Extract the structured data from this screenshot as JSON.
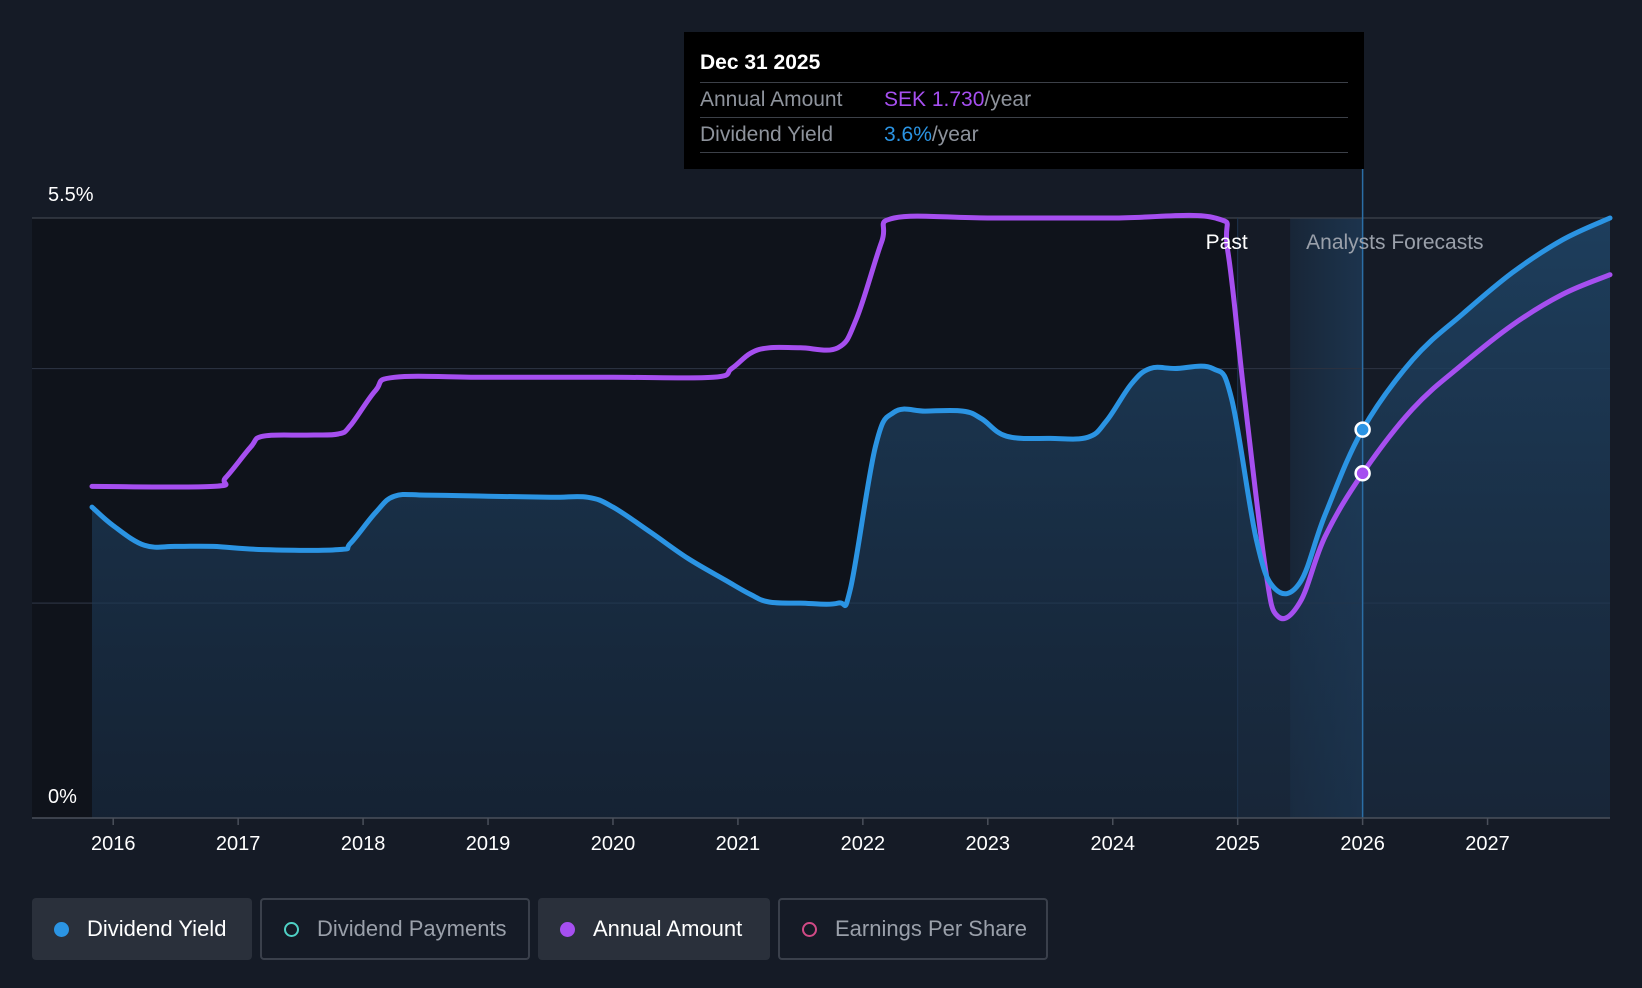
{
  "tooltip": {
    "date": "Dec 31 2025",
    "annual_label": "Annual Amount",
    "annual_value": "SEK 1.730",
    "annual_unit": "/year",
    "yield_label": "Dividend Yield",
    "yield_value": "3.6%",
    "yield_unit": "/year"
  },
  "regions": {
    "past": "Past",
    "forecast": "Analysts Forecasts"
  },
  "legend": [
    {
      "label": "Dividend Yield",
      "color": "#2b94e3",
      "active": true
    },
    {
      "label": "Dividend Payments",
      "color": "#4fd1c5",
      "active": false
    },
    {
      "label": "Annual Amount",
      "color": "#a64ff0",
      "active": true
    },
    {
      "label": "Earnings Per Share",
      "color": "#d14a86",
      "active": false
    }
  ],
  "colors": {
    "yield": "#2b94e3",
    "annual": "#a64ff0",
    "background": "#151b26"
  },
  "chart_data": {
    "type": "line",
    "title": "",
    "xlabel": "",
    "ylabel": "",
    "xlim": [
      2015.35,
      2027.98
    ],
    "ylim": [
      0,
      5.5
    ],
    "y_tick_labels": [
      "0%",
      "5.5%"
    ],
    "x_ticks": [
      2016,
      2017,
      2018,
      2019,
      2020,
      2021,
      2022,
      2023,
      2024,
      2025,
      2026,
      2027
    ],
    "past_end": 2025.0,
    "forecast_start": 2025.42,
    "highlight_x": 2026.0,
    "series": [
      {
        "name": "Dividend Yield",
        "unit": "%",
        "points": [
          [
            2015.83,
            2.85
          ],
          [
            2016.0,
            2.68
          ],
          [
            2016.25,
            2.5
          ],
          [
            2016.5,
            2.49
          ],
          [
            2016.8,
            2.49
          ],
          [
            2017.2,
            2.46
          ],
          [
            2017.8,
            2.46
          ],
          [
            2017.9,
            2.52
          ],
          [
            2018.1,
            2.8
          ],
          [
            2018.25,
            2.95
          ],
          [
            2018.5,
            2.96
          ],
          [
            2019.0,
            2.95
          ],
          [
            2019.5,
            2.94
          ],
          [
            2019.8,
            2.94
          ],
          [
            2020.0,
            2.85
          ],
          [
            2020.3,
            2.62
          ],
          [
            2020.6,
            2.38
          ],
          [
            2020.9,
            2.18
          ],
          [
            2021.1,
            2.05
          ],
          [
            2021.25,
            1.98
          ],
          [
            2021.5,
            1.97
          ],
          [
            2021.8,
            1.97
          ],
          [
            2021.9,
            2.1
          ],
          [
            2022.1,
            3.4
          ],
          [
            2022.25,
            3.72
          ],
          [
            2022.5,
            3.73
          ],
          [
            2022.8,
            3.73
          ],
          [
            2022.95,
            3.66
          ],
          [
            2023.15,
            3.5
          ],
          [
            2023.5,
            3.48
          ],
          [
            2023.8,
            3.49
          ],
          [
            2023.95,
            3.64
          ],
          [
            2024.15,
            3.98
          ],
          [
            2024.3,
            4.12
          ],
          [
            2024.5,
            4.12
          ],
          [
            2024.8,
            4.12
          ],
          [
            2024.95,
            3.85
          ],
          [
            2025.15,
            2.55
          ],
          [
            2025.3,
            2.1
          ],
          [
            2025.5,
            2.16
          ],
          [
            2025.7,
            2.78
          ],
          [
            2026.0,
            3.56
          ],
          [
            2026.4,
            4.2
          ],
          [
            2026.8,
            4.62
          ],
          [
            2027.2,
            5.0
          ],
          [
            2027.6,
            5.3
          ],
          [
            2027.98,
            5.5
          ]
        ]
      },
      {
        "name": "Annual Amount",
        "unit": "SEK",
        "points": [
          [
            2015.83,
            3.04
          ],
          [
            2016.8,
            3.04
          ],
          [
            2016.9,
            3.12
          ],
          [
            2017.1,
            3.4
          ],
          [
            2017.2,
            3.5
          ],
          [
            2017.55,
            3.51
          ],
          [
            2017.8,
            3.52
          ],
          [
            2017.9,
            3.6
          ],
          [
            2018.1,
            3.92
          ],
          [
            2018.25,
            4.04
          ],
          [
            2019.0,
            4.04
          ],
          [
            2020.0,
            4.04
          ],
          [
            2020.8,
            4.04
          ],
          [
            2020.95,
            4.12
          ],
          [
            2021.1,
            4.26
          ],
          [
            2021.25,
            4.31
          ],
          [
            2021.5,
            4.31
          ],
          [
            2021.8,
            4.31
          ],
          [
            2021.95,
            4.58
          ],
          [
            2022.15,
            5.28
          ],
          [
            2022.25,
            5.5
          ],
          [
            2023.0,
            5.5
          ],
          [
            2024.0,
            5.5
          ],
          [
            2024.82,
            5.5
          ],
          [
            2024.92,
            5.2
          ],
          [
            2025.05,
            3.9
          ],
          [
            2025.22,
            2.3
          ],
          [
            2025.32,
            1.85
          ],
          [
            2025.5,
            1.98
          ],
          [
            2025.7,
            2.58
          ],
          [
            2026.0,
            3.16
          ],
          [
            2026.4,
            3.75
          ],
          [
            2026.8,
            4.16
          ],
          [
            2027.2,
            4.52
          ],
          [
            2027.6,
            4.8
          ],
          [
            2027.98,
            4.98
          ]
        ]
      }
    ],
    "highlight_points": [
      {
        "series": "Dividend Yield",
        "x": 2026.0,
        "y": 3.56
      },
      {
        "series": "Annual Amount",
        "x": 2026.0,
        "y": 3.16
      }
    ]
  }
}
